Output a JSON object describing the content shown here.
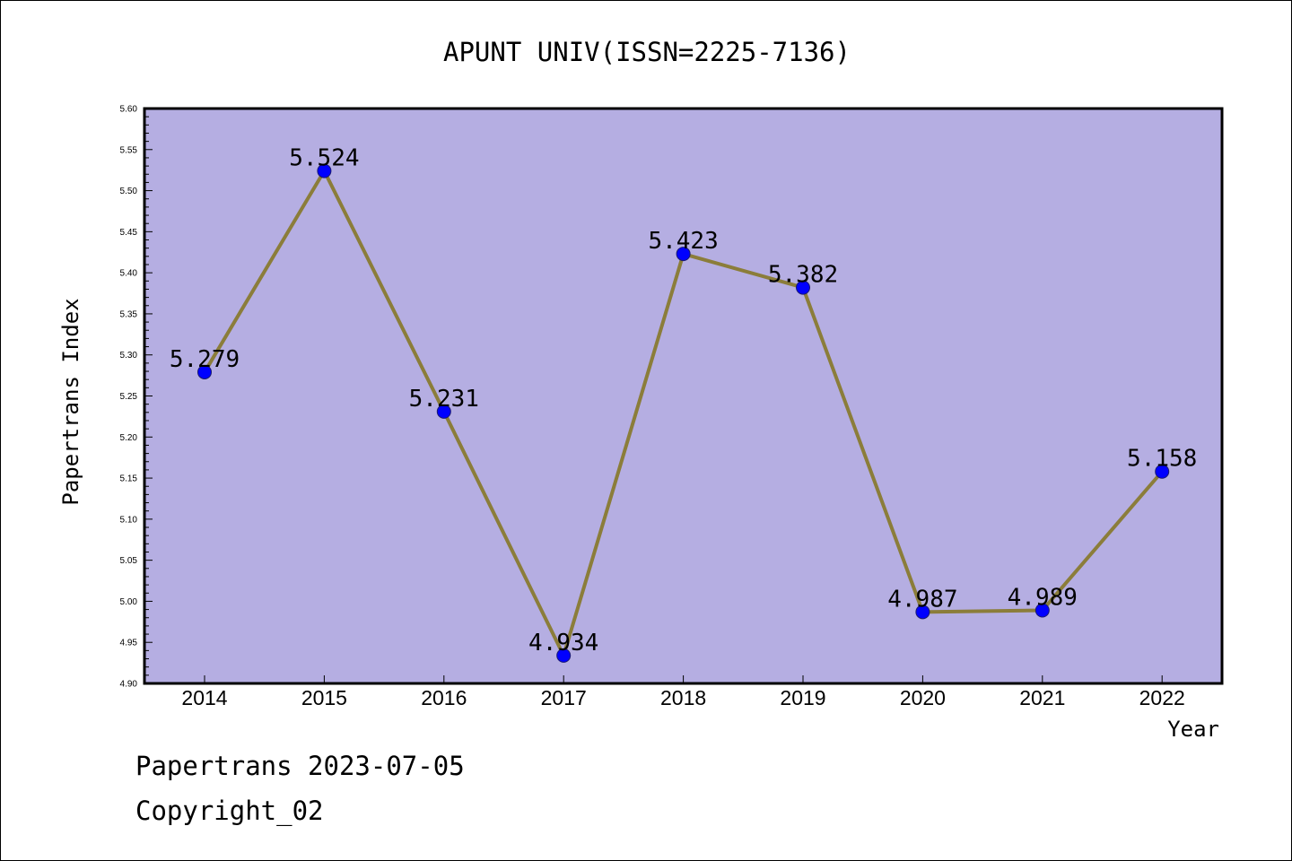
{
  "footer": {
    "line1": "Papertrans 2023-07-05",
    "line2": "Copyright_02"
  },
  "chart_data": {
    "type": "line",
    "title": "APUNT UNIV(ISSN=2225-7136)",
    "xlabel": "Year",
    "ylabel": "Papertrans Index",
    "categories": [
      "2014",
      "2015",
      "2016",
      "2017",
      "2018",
      "2019",
      "2020",
      "2021",
      "2022"
    ],
    "series": [
      {
        "values": [
          5.279,
          5.524,
          5.231,
          4.934,
          5.423,
          5.382,
          4.987,
          4.989,
          5.158
        ],
        "labels": [
          "5.279",
          "5.524",
          "5.231",
          "4.934",
          "5.423",
          "5.382",
          "4.987",
          "4.989",
          "5.158"
        ]
      }
    ],
    "ylim": [
      4.9,
      5.6
    ],
    "ytick_labels": [
      "4.90",
      "4.95",
      "5.00",
      "5.05",
      "5.10",
      "5.15",
      "5.20",
      "5.25",
      "5.30",
      "5.35",
      "5.40",
      "5.45",
      "5.50",
      "5.55",
      "5.60"
    ],
    "grid": false,
    "legend": "none",
    "colors": {
      "plot_background": "#b5aee2",
      "line": "#8b7d3a",
      "marker": "#0000ff",
      "axis": "#000000"
    }
  }
}
